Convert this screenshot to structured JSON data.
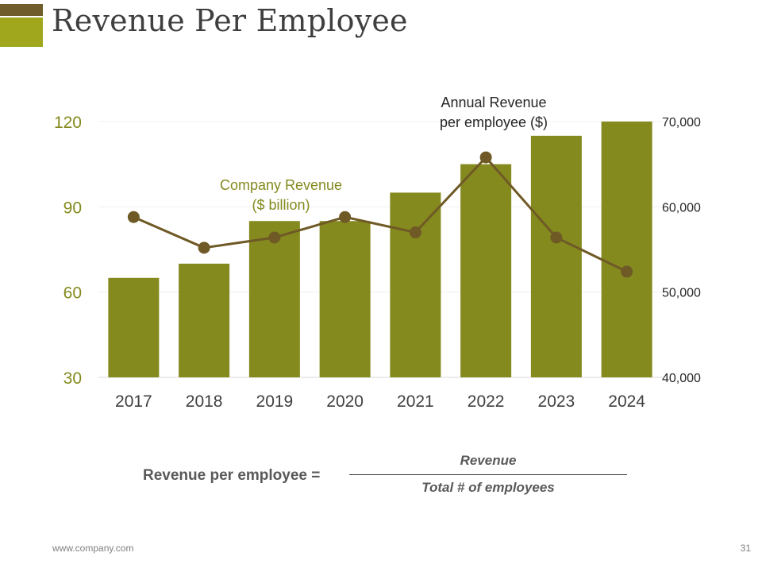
{
  "slide": {
    "title": "Revenue Per Employee",
    "footer_url": "www.company.com",
    "page_number": "31"
  },
  "colors": {
    "bar": "#848a1e",
    "line": "#6f5a26",
    "left_axis_text": "#848a1e",
    "right_axis_text": "#262626",
    "corner_dark": "#6f5e2b",
    "corner_light": "#a0a71c"
  },
  "formula": {
    "label": "Revenue per employee =",
    "numerator": "Revenue",
    "denominator": "Total # of employees"
  },
  "chart_data": {
    "type": "bar+line",
    "categories": [
      "2017",
      "2018",
      "2019",
      "2020",
      "2021",
      "2022",
      "2023",
      "2024"
    ],
    "series": [
      {
        "name": "Company Revenue ($ billion)",
        "type": "bar",
        "axis": "left",
        "label_lines": [
          "Company Revenue",
          "($ billion)"
        ],
        "values": [
          65,
          70,
          85,
          85,
          95,
          105,
          115,
          120
        ]
      },
      {
        "name": "Annual Revenue per employee ($)",
        "type": "line",
        "axis": "right",
        "label_lines": [
          "Annual Revenue",
          "per employee ($)"
        ],
        "values": [
          58800,
          55200,
          56400,
          58800,
          57000,
          65800,
          56400,
          52400
        ]
      }
    ],
    "left_axis": {
      "min": 30,
      "max": 120,
      "ticks": [
        "30",
        "60",
        "90",
        "120"
      ],
      "tick_values": [
        30,
        60,
        90,
        120
      ]
    },
    "right_axis": {
      "min": 40000,
      "max": 70000,
      "ticks": [
        "40,000",
        "50,000",
        "60,000",
        "70,000"
      ],
      "tick_values": [
        40000,
        50000,
        60000,
        70000
      ]
    },
    "grid": true,
    "legend": "inline annotations"
  }
}
